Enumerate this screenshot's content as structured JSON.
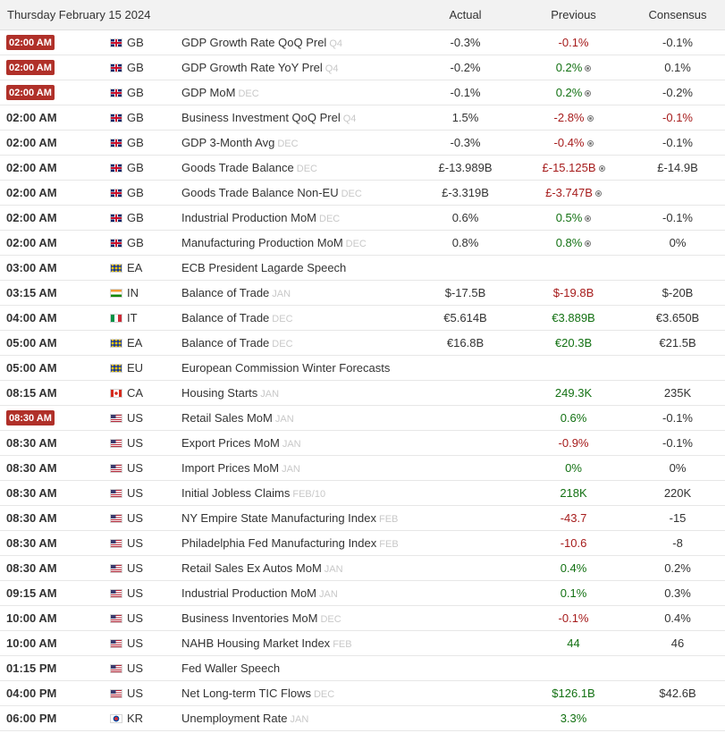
{
  "header": {
    "date": "Thursday February 15 2024",
    "actual": "Actual",
    "previous": "Previous",
    "consensus": "Consensus"
  },
  "colors": {
    "highlight": "#b03029",
    "negative": "#a61c1c",
    "positive": "#137113"
  },
  "rows": [
    {
      "time": "02:00 AM",
      "highlight": true,
      "country": "GB",
      "flag": "uk-flag-icon",
      "event": "GDP Growth Rate QoQ Prel",
      "ref": "Q4",
      "actual": "-0.3%",
      "previous": "-0.1%",
      "prev_color": "red",
      "revised": false,
      "consensus": "-0.1%",
      "cons_color": ""
    },
    {
      "time": "02:00 AM",
      "highlight": true,
      "country": "GB",
      "flag": "uk-flag-icon",
      "event": "GDP Growth Rate YoY Prel",
      "ref": "Q4",
      "actual": "-0.2%",
      "previous": "0.2%",
      "prev_color": "green",
      "revised": true,
      "consensus": "0.1%",
      "cons_color": ""
    },
    {
      "time": "02:00 AM",
      "highlight": true,
      "country": "GB",
      "flag": "uk-flag-icon",
      "event": "GDP MoM",
      "ref": "DEC",
      "actual": "-0.1%",
      "previous": "0.2%",
      "prev_color": "green",
      "revised": true,
      "consensus": "-0.2%",
      "cons_color": ""
    },
    {
      "time": "02:00 AM",
      "highlight": false,
      "country": "GB",
      "flag": "uk-flag-icon",
      "event": "Business Investment QoQ Prel",
      "ref": "Q4",
      "actual": "1.5%",
      "previous": "-2.8%",
      "prev_color": "red",
      "revised": true,
      "consensus": "-0.1%",
      "cons_color": "red"
    },
    {
      "time": "02:00 AM",
      "highlight": false,
      "country": "GB",
      "flag": "uk-flag-icon",
      "event": "GDP 3-Month Avg",
      "ref": "DEC",
      "actual": "-0.3%",
      "previous": "-0.4%",
      "prev_color": "red",
      "revised": true,
      "consensus": "-0.1%",
      "cons_color": ""
    },
    {
      "time": "02:00 AM",
      "highlight": false,
      "country": "GB",
      "flag": "uk-flag-icon",
      "event": "Goods Trade Balance",
      "ref": "DEC",
      "actual": "£-13.989B",
      "previous": "£-15.125B",
      "prev_color": "red",
      "revised": true,
      "consensus": "£-14.9B",
      "cons_color": ""
    },
    {
      "time": "02:00 AM",
      "highlight": false,
      "country": "GB",
      "flag": "uk-flag-icon",
      "event": "Goods Trade Balance Non-EU",
      "ref": "DEC",
      "actual": "£-3.319B",
      "previous": "£-3.747B",
      "prev_color": "red",
      "revised": true,
      "consensus": "",
      "cons_color": ""
    },
    {
      "time": "02:00 AM",
      "highlight": false,
      "country": "GB",
      "flag": "uk-flag-icon",
      "event": "Industrial Production MoM",
      "ref": "DEC",
      "actual": "0.6%",
      "previous": "0.5%",
      "prev_color": "green",
      "revised": true,
      "consensus": "-0.1%",
      "cons_color": ""
    },
    {
      "time": "02:00 AM",
      "highlight": false,
      "country": "GB",
      "flag": "uk-flag-icon",
      "event": "Manufacturing Production MoM",
      "ref": "DEC",
      "actual": "0.8%",
      "previous": "0.8%",
      "prev_color": "green",
      "revised": true,
      "consensus": "0%",
      "cons_color": ""
    },
    {
      "time": "03:00 AM",
      "highlight": false,
      "country": "EA",
      "flag": "eu-flag-icon",
      "event": "ECB President Lagarde Speech",
      "ref": "",
      "actual": "",
      "previous": "",
      "prev_color": "",
      "revised": false,
      "consensus": "",
      "cons_color": ""
    },
    {
      "time": "03:15 AM",
      "highlight": false,
      "country": "IN",
      "flag": "india-flag-icon",
      "event": "Balance of Trade",
      "ref": "JAN",
      "actual": "$-17.5B",
      "previous": "$-19.8B",
      "prev_color": "red",
      "revised": false,
      "consensus": "$-20B",
      "cons_color": ""
    },
    {
      "time": "04:00 AM",
      "highlight": false,
      "country": "IT",
      "flag": "italy-flag-icon",
      "event": "Balance of Trade",
      "ref": "DEC",
      "actual": "€5.614B",
      "previous": "€3.889B",
      "prev_color": "green",
      "revised": false,
      "consensus": "€3.650B",
      "cons_color": ""
    },
    {
      "time": "05:00 AM",
      "highlight": false,
      "country": "EA",
      "flag": "eu-flag-icon",
      "event": "Balance of Trade",
      "ref": "DEC",
      "actual": "€16.8B",
      "previous": "€20.3B",
      "prev_color": "green",
      "revised": false,
      "consensus": "€21.5B",
      "cons_color": ""
    },
    {
      "time": "05:00 AM",
      "highlight": false,
      "country": "EU",
      "flag": "eu-flag-icon",
      "event": "European Commission Winter Forecasts",
      "ref": "",
      "actual": "",
      "previous": "",
      "prev_color": "",
      "revised": false,
      "consensus": "",
      "cons_color": ""
    },
    {
      "time": "08:15 AM",
      "highlight": false,
      "country": "CA",
      "flag": "canada-flag-icon",
      "event": "Housing Starts",
      "ref": "JAN",
      "actual": "",
      "previous": "249.3K",
      "prev_color": "green",
      "revised": false,
      "consensus": "235K",
      "cons_color": ""
    },
    {
      "time": "08:30 AM",
      "highlight": true,
      "country": "US",
      "flag": "us-flag-icon",
      "event": "Retail Sales MoM",
      "ref": "JAN",
      "actual": "",
      "previous": "0.6%",
      "prev_color": "green",
      "revised": false,
      "consensus": "-0.1%",
      "cons_color": ""
    },
    {
      "time": "08:30 AM",
      "highlight": false,
      "country": "US",
      "flag": "us-flag-icon",
      "event": "Export Prices MoM",
      "ref": "JAN",
      "actual": "",
      "previous": "-0.9%",
      "prev_color": "red",
      "revised": false,
      "consensus": "-0.1%",
      "cons_color": ""
    },
    {
      "time": "08:30 AM",
      "highlight": false,
      "country": "US",
      "flag": "us-flag-icon",
      "event": "Import Prices MoM",
      "ref": "JAN",
      "actual": "",
      "previous": "0%",
      "prev_color": "green",
      "revised": false,
      "consensus": "0%",
      "cons_color": ""
    },
    {
      "time": "08:30 AM",
      "highlight": false,
      "country": "US",
      "flag": "us-flag-icon",
      "event": "Initial Jobless Claims",
      "ref": "FEB/10",
      "actual": "",
      "previous": "218K",
      "prev_color": "green",
      "revised": false,
      "consensus": "220K",
      "cons_color": ""
    },
    {
      "time": "08:30 AM",
      "highlight": false,
      "country": "US",
      "flag": "us-flag-icon",
      "event": "NY Empire State Manufacturing Index",
      "ref": "FEB",
      "actual": "",
      "previous": "-43.7",
      "prev_color": "red",
      "revised": false,
      "consensus": "-15",
      "cons_color": ""
    },
    {
      "time": "08:30 AM",
      "highlight": false,
      "country": "US",
      "flag": "us-flag-icon",
      "event": "Philadelphia Fed Manufacturing Index",
      "ref": "FEB",
      "actual": "",
      "previous": "-10.6",
      "prev_color": "red",
      "revised": false,
      "consensus": "-8",
      "cons_color": ""
    },
    {
      "time": "08:30 AM",
      "highlight": false,
      "country": "US",
      "flag": "us-flag-icon",
      "event": "Retail Sales Ex Autos MoM",
      "ref": "JAN",
      "actual": "",
      "previous": "0.4%",
      "prev_color": "green",
      "revised": false,
      "consensus": "0.2%",
      "cons_color": ""
    },
    {
      "time": "09:15 AM",
      "highlight": false,
      "country": "US",
      "flag": "us-flag-icon",
      "event": "Industrial Production MoM",
      "ref": "JAN",
      "actual": "",
      "previous": "0.1%",
      "prev_color": "green",
      "revised": false,
      "consensus": "0.3%",
      "cons_color": ""
    },
    {
      "time": "10:00 AM",
      "highlight": false,
      "country": "US",
      "flag": "us-flag-icon",
      "event": "Business Inventories MoM",
      "ref": "DEC",
      "actual": "",
      "previous": "-0.1%",
      "prev_color": "red",
      "revised": false,
      "consensus": "0.4%",
      "cons_color": ""
    },
    {
      "time": "10:00 AM",
      "highlight": false,
      "country": "US",
      "flag": "us-flag-icon",
      "event": "NAHB Housing Market Index",
      "ref": "FEB",
      "actual": "",
      "previous": "44",
      "prev_color": "green",
      "revised": false,
      "consensus": "46",
      "cons_color": ""
    },
    {
      "time": "01:15 PM",
      "highlight": false,
      "country": "US",
      "flag": "us-flag-icon",
      "event": "Fed Waller Speech",
      "ref": "",
      "actual": "",
      "previous": "",
      "prev_color": "",
      "revised": false,
      "consensus": "",
      "cons_color": ""
    },
    {
      "time": "04:00 PM",
      "highlight": false,
      "country": "US",
      "flag": "us-flag-icon",
      "event": "Net Long-term TIC Flows",
      "ref": "DEC",
      "actual": "",
      "previous": "$126.1B",
      "prev_color": "green",
      "revised": false,
      "consensus": "$42.6B",
      "cons_color": ""
    },
    {
      "time": "06:00 PM",
      "highlight": false,
      "country": "KR",
      "flag": "south-korea-flag-icon",
      "event": "Unemployment Rate",
      "ref": "JAN",
      "actual": "",
      "previous": "3.3%",
      "prev_color": "green",
      "revised": false,
      "consensus": "",
      "cons_color": ""
    }
  ]
}
